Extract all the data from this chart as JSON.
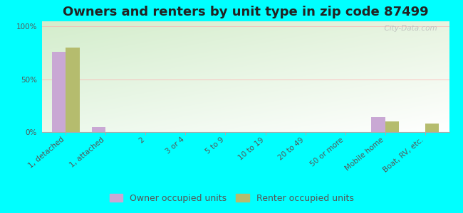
{
  "title": "Owners and renters by unit type in zip code 87499",
  "categories": [
    "1, detached",
    "1, attached",
    "2",
    "3 or 4",
    "5 to 9",
    "10 to 19",
    "20 to 49",
    "50 or more",
    "Mobile home",
    "Boat, RV, etc."
  ],
  "owner_values": [
    76,
    5,
    0,
    0,
    0,
    0,
    0,
    0,
    14,
    0
  ],
  "renter_values": [
    80,
    0,
    0,
    0,
    0,
    0,
    0,
    0,
    10,
    8
  ],
  "owner_color": "#c9a8d4",
  "renter_color": "#b5bc6e",
  "background_color": "#00ffff",
  "ylabel_ticks": [
    "0%",
    "50%",
    "100%"
  ],
  "ytick_vals": [
    0,
    50,
    100
  ],
  "ylim": [
    0,
    105
  ],
  "bar_width": 0.35,
  "title_fontsize": 13,
  "tick_fontsize": 7.5,
  "legend_fontsize": 9,
  "watermark": "  City-Data.com"
}
